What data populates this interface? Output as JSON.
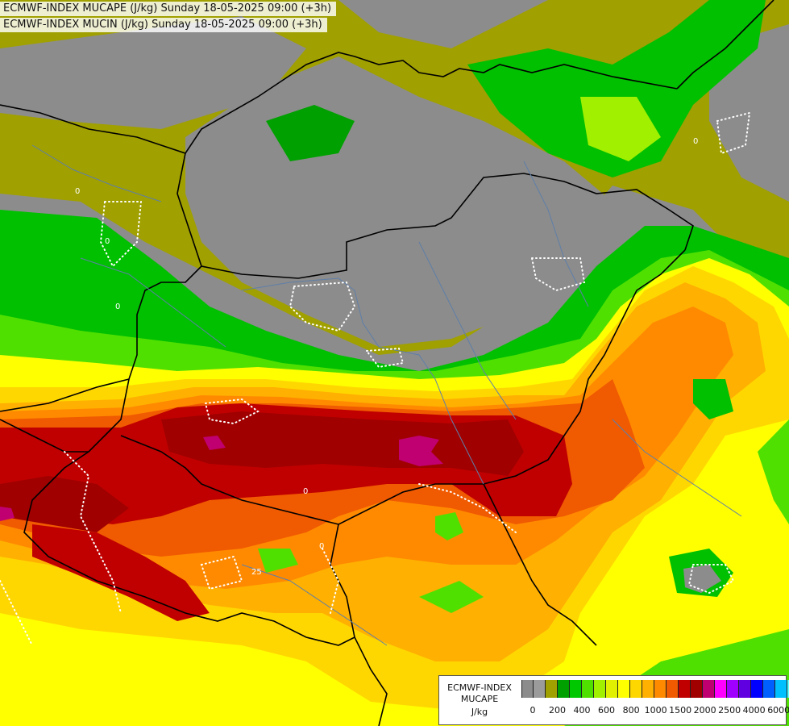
{
  "header": {
    "line1": "ECMWF-INDEX MUCAPE (J/kg) Sunday 18-05-2025 09:00 (+3h)",
    "line2": "ECMWF-INDEX MUCIN (J/kg) Sunday 18-05-2025 09:00 (+3h)"
  },
  "legend": {
    "title_line1": "ECMWF-INDEX",
    "title_line2": "MUCAPE",
    "unit": "J/kg",
    "colors": [
      "#8c8c8c",
      "#9b9b9b",
      "#a0a000",
      "#00a000",
      "#00c800",
      "#50e000",
      "#a0f000",
      "#e0f000",
      "#ffff00",
      "#ffd700",
      "#ffb000",
      "#ff8a00",
      "#f05a00",
      "#c00000",
      "#a00000",
      "#c00070",
      "#ff00ff",
      "#a000ff",
      "#6000e0",
      "#0000ff",
      "#0060ff",
      "#00c0ff",
      "#60ffff",
      "#e0ffff"
    ],
    "tick_labels": [
      "0",
      "200",
      "400",
      "600",
      "800",
      "1000",
      "1500",
      "2000",
      "2500",
      "4000",
      "6000"
    ]
  },
  "contour_labels": [
    "0",
    "0",
    "0",
    "0",
    "0",
    "25",
    "0"
  ]
}
